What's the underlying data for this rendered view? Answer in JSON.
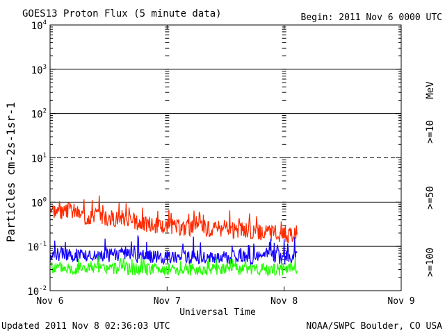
{
  "header": {
    "title": "GOES13 Proton Flux (5 minute data)",
    "begin": "Begin: 2011 Nov 6 0000 UTC"
  },
  "footer": {
    "updated": "Updated 2011 Nov  8 02:36:03 UTC",
    "credit": "NOAA/SWPC Boulder, CO USA"
  },
  "chart_data": {
    "type": "line",
    "title": "GOES13 Proton Flux (5 minute data)",
    "xlabel": "Universal Time",
    "ylabel": "Particles cm-2s-1sr-1",
    "y_scale": "log",
    "ylim": [
      0.01,
      10000
    ],
    "y_ticks": [
      {
        "base": "10",
        "exp": "-2",
        "value": 0.01
      },
      {
        "base": "10",
        "exp": "-1",
        "value": 0.1
      },
      {
        "base": "10",
        "exp": "0",
        "value": 1
      },
      {
        "base": "10",
        "exp": "1",
        "value": 10
      },
      {
        "base": "10",
        "exp": "2",
        "value": 100
      },
      {
        "base": "10",
        "exp": "3",
        "value": 1000
      },
      {
        "base": "10",
        "exp": "4",
        "value": 10000
      }
    ],
    "x_unit": "days since 2011 Nov 6 0000 UTC",
    "xlim": [
      0,
      3
    ],
    "x_ticks": [
      {
        "label": "Nov 6",
        "value": 0
      },
      {
        "label": "Nov 7",
        "value": 1
      },
      {
        "label": "Nov 8",
        "value": 2
      },
      {
        "label": "Nov 9",
        "value": 3
      }
    ],
    "reference_lines": [
      {
        "value": 1,
        "style": "solid"
      },
      {
        "value": 10,
        "style": "dashed"
      },
      {
        "value": 100,
        "style": "solid"
      },
      {
        "value": 1000,
        "style": "solid"
      },
      {
        "value": 0.1,
        "style": "solid"
      }
    ],
    "unit_label": "MeV",
    "series": [
      {
        "name": ">=10",
        "color": "#ff2a00",
        "x": [
          0.0,
          0.1,
          0.2,
          0.3,
          0.4,
          0.5,
          0.6,
          0.7,
          0.8,
          0.9,
          1.0,
          1.1,
          1.2,
          1.3,
          1.4,
          1.5,
          1.6,
          1.7,
          1.8,
          1.9,
          2.0,
          2.11
        ],
        "values": [
          0.75,
          0.55,
          0.65,
          0.45,
          0.55,
          0.42,
          0.45,
          0.38,
          0.32,
          0.3,
          0.28,
          0.27,
          0.26,
          0.27,
          0.24,
          0.25,
          0.22,
          0.22,
          0.2,
          0.2,
          0.18,
          0.19
        ]
      },
      {
        "name": ">=50",
        "color": "#1400ff",
        "x": [
          0.0,
          0.1,
          0.2,
          0.3,
          0.4,
          0.5,
          0.6,
          0.7,
          0.8,
          0.9,
          1.0,
          1.1,
          1.2,
          1.3,
          1.4,
          1.5,
          1.6,
          1.7,
          1.8,
          1.9,
          2.0,
          2.11
        ],
        "values": [
          0.06,
          0.07,
          0.065,
          0.06,
          0.06,
          0.06,
          0.065,
          0.06,
          0.06,
          0.06,
          0.055,
          0.06,
          0.055,
          0.06,
          0.055,
          0.055,
          0.06,
          0.055,
          0.055,
          0.06,
          0.055,
          0.06
        ]
      },
      {
        "name": ">=100",
        "color": "#22ff00",
        "x": [
          0.0,
          0.1,
          0.2,
          0.3,
          0.4,
          0.5,
          0.6,
          0.7,
          0.8,
          0.9,
          1.0,
          1.1,
          1.2,
          1.3,
          1.4,
          1.5,
          1.6,
          1.7,
          1.8,
          1.9,
          2.0,
          2.11
        ],
        "values": [
          0.032,
          0.033,
          0.031,
          0.032,
          0.031,
          0.031,
          0.032,
          0.031,
          0.03,
          0.031,
          0.03,
          0.031,
          0.03,
          0.03,
          0.031,
          0.03,
          0.03,
          0.031,
          0.03,
          0.03,
          0.03,
          0.031
        ]
      }
    ]
  }
}
